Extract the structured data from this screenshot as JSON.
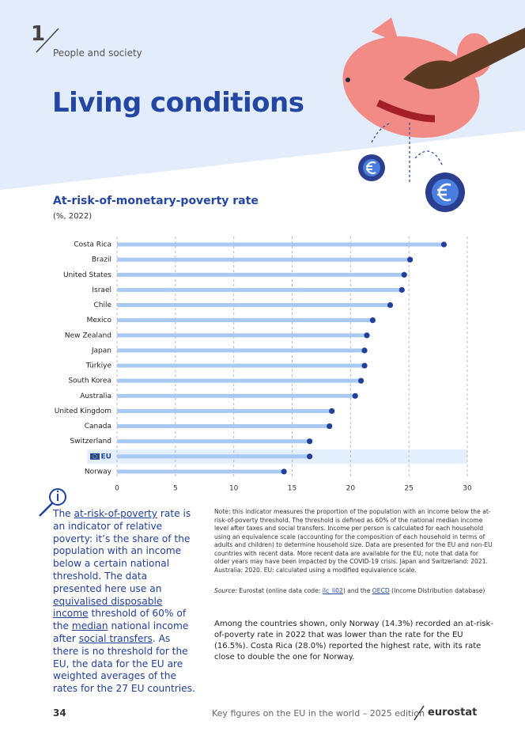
{
  "header": {
    "section_number": "1",
    "section": "People and society",
    "title": "Living conditions"
  },
  "chart_data": {
    "type": "bar",
    "orientation": "horizontal",
    "title": "At-risk-of-monetary-poverty rate",
    "subtitle": "(%, 2022)",
    "categories": [
      "Costa Rica",
      "Brazil",
      "United States",
      "Israel",
      "Chile",
      "Mexico",
      "New Zealand",
      "Japan",
      "Türkiye",
      "South Korea",
      "Australia",
      "United Kingdom",
      "Canada",
      "Switzerland",
      "EU",
      "Norway"
    ],
    "values": [
      28.0,
      25.1,
      24.6,
      24.4,
      23.4,
      21.9,
      21.4,
      21.2,
      21.2,
      20.9,
      20.4,
      18.4,
      18.2,
      16.5,
      16.5,
      14.3
    ],
    "color": "#a9c8f2",
    "marker_color": "#21409a",
    "highlight": "EU",
    "xlim": [
      0,
      30
    ],
    "xticks": [
      0,
      5,
      10,
      15,
      20,
      25,
      30
    ],
    "grid": true
  },
  "sidebar": {
    "parts": [
      {
        "text": "The ",
        "underline": false
      },
      {
        "text": "at-risk-of-poverty",
        "underline": true
      },
      {
        "text": " rate is an indicator of relative poverty: it’s the share of the population with an income below a certain national threshold. The data presented here use an ",
        "underline": false
      },
      {
        "text": "equivalised disposable income",
        "underline": true
      },
      {
        "text": " threshold of 60% of the ",
        "underline": false
      },
      {
        "text": "median",
        "underline": true
      },
      {
        "text": " national income after ",
        "underline": false
      },
      {
        "text": "social transfers",
        "underline": true
      },
      {
        "text": ". As there is no threshold for the EU, the data for the EU are weighted averages of the rates for the 27 EU countries.",
        "underline": false
      }
    ]
  },
  "note": "Note: this indicator measures the proportion of the population with an income below the at-risk-of-poverty threshold. The threshold is defined as 60% of the national median income level after taxes and social transfers. Income per person is calculated for each household using an equivalence scale (accounting for the composition of each household in terms of adults and children) to determine household size. Data are presented for the EU and non-EU countries with recent data. More recent data are available for the EU; note that data for older years may have been impacted by the COVID-19 crisis. Japan and Switzerland: 2021. Australia: 2020. EU: calculated using a modified equivalence scale.",
  "source": {
    "parts": [
      {
        "text": "Source:",
        "style": "italic"
      },
      {
        "text": " Eurostat (online data code: ",
        "style": "plain"
      },
      {
        "text": "ilc_li02",
        "style": "link"
      },
      {
        "text": ") and the ",
        "style": "plain"
      },
      {
        "text": "OECD",
        "style": "link"
      },
      {
        "text": " (Income Distribution database)",
        "style": "plain"
      }
    ]
  },
  "body": "Among the countries shown, only Norway (14.3%) recorded an at-risk-of-poverty rate in 2022 that was lower than the rate for the EU (16.5%). Costa Rica (28.0%) reported the highest rate, with its rate close to double the one for Norway.",
  "footer": {
    "page": "34",
    "publication": "Key figures on the EU in the world – 2025 edition",
    "brand": "eurostat"
  }
}
